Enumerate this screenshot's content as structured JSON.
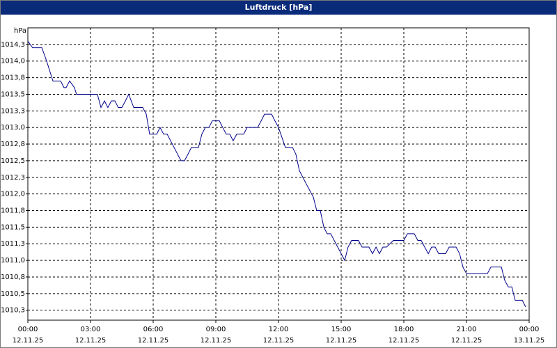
{
  "chart_data": {
    "type": "line",
    "title": "Luftdruck [hPa]",
    "y_label": "hPa",
    "x": [
      0,
      0.23,
      0.67,
      0.9,
      1.2,
      1.57,
      1.73,
      1.83,
      2,
      2.23,
      2.33,
      3.33,
      3.5,
      3.67,
      3.83,
      4,
      4.17,
      4.33,
      4.5,
      4.67,
      4.83,
      5.07,
      5.5,
      5.67,
      5.83,
      6.17,
      6.33,
      6.5,
      6.67,
      7,
      7.33,
      7.5,
      7.67,
      7.83,
      8.17,
      8.33,
      8.5,
      8.67,
      8.83,
      9.17,
      9.33,
      9.5,
      9.67,
      9.83,
      10,
      10.33,
      10.5,
      11,
      11.17,
      11.33,
      11.67,
      11.83,
      12,
      12.33,
      12.67,
      12.83,
      13,
      13.33,
      13.67,
      13.83,
      14,
      14.17,
      14.33,
      14.5,
      15.17,
      15.33,
      15.5,
      15.83,
      16,
      16.33,
      16.5,
      16.67,
      16.83,
      17,
      17.17,
      17.5,
      18,
      18.17,
      18.5,
      18.67,
      18.83,
      19.17,
      19.33,
      19.5,
      19.67,
      20,
      20.17,
      20.5,
      20.67,
      20.83,
      21,
      22,
      22.17,
      22.67,
      22.83,
      23,
      23.17,
      23.33,
      23.67,
      23.83
    ],
    "series": [
      {
        "name": "Luftdruck",
        "color": "#00008b",
        "values": [
          1014.3,
          1014.2,
          1014.2,
          1014.0,
          1013.7,
          1013.7,
          1013.6,
          1013.6,
          1013.7,
          1013.6,
          1013.5,
          1013.5,
          1013.3,
          1013.4,
          1013.3,
          1013.4,
          1013.4,
          1013.3,
          1013.3,
          1013.4,
          1013.5,
          1013.3,
          1013.3,
          1013.2,
          1012.9,
          1012.9,
          1013.0,
          1012.9,
          1012.9,
          1012.7,
          1012.5,
          1012.5,
          1012.6,
          1012.7,
          1012.7,
          1012.9,
          1013.0,
          1013.0,
          1013.1,
          1013.1,
          1013.0,
          1012.9,
          1012.9,
          1012.8,
          1012.9,
          1012.9,
          1013.0,
          1013.0,
          1013.1,
          1013.2,
          1013.2,
          1013.1,
          1013.0,
          1012.7,
          1012.7,
          1012.6,
          1012.35,
          1012.15,
          1011.95,
          1011.75,
          1011.75,
          1011.5,
          1011.4,
          1011.4,
          1011.0,
          1011.2,
          1011.3,
          1011.3,
          1011.2,
          1011.2,
          1011.1,
          1011.2,
          1011.1,
          1011.2,
          1011.2,
          1011.3,
          1011.3,
          1011.4,
          1011.4,
          1011.3,
          1011.3,
          1011.1,
          1011.2,
          1011.2,
          1011.1,
          1011.1,
          1011.2,
          1011.2,
          1011.1,
          1010.9,
          1010.8,
          1010.8,
          1010.9,
          1010.9,
          1010.7,
          1010.6,
          1010.6,
          1010.4,
          1010.4,
          1010.3
        ]
      }
    ],
    "xlim": [
      0,
      24
    ],
    "xticks": [
      {
        "value": 0,
        "label": "00:00",
        "date": "12.11.25"
      },
      {
        "value": 3,
        "label": "03:00",
        "date": "12.11.25"
      },
      {
        "value": 6,
        "label": "06:00",
        "date": "12.11.25"
      },
      {
        "value": 9,
        "label": "09:00",
        "date": "12.11.25"
      },
      {
        "value": 12,
        "label": "12:00",
        "date": "12.11.25"
      },
      {
        "value": 15,
        "label": "15:00",
        "date": "12.11.25"
      },
      {
        "value": 18,
        "label": "18:00",
        "date": "12.11.25"
      },
      {
        "value": 21,
        "label": "21:00",
        "date": "12.11.25"
      },
      {
        "value": 24,
        "label": "00:00",
        "date": "13.11.25"
      }
    ],
    "ylim": [
      1010.1,
      1014.5
    ],
    "yticks": [
      {
        "value": 1010.25,
        "label": "1010,3"
      },
      {
        "value": 1010.5,
        "label": "1010,5"
      },
      {
        "value": 1010.75,
        "label": "1010,8"
      },
      {
        "value": 1011,
        "label": "1011,0"
      },
      {
        "value": 1011.25,
        "label": "1011,3"
      },
      {
        "value": 1011.5,
        "label": "1011,5"
      },
      {
        "value": 1011.75,
        "label": "1011,8"
      },
      {
        "value": 1012,
        "label": "1012,0"
      },
      {
        "value": 1012.25,
        "label": "1012,3"
      },
      {
        "value": 1012.5,
        "label": "1012,5"
      },
      {
        "value": 1012.75,
        "label": "1012,8"
      },
      {
        "value": 1013,
        "label": "1013,0"
      },
      {
        "value": 1013.25,
        "label": "1013,3"
      },
      {
        "value": 1013.5,
        "label": "1013,5"
      },
      {
        "value": 1013.75,
        "label": "1013,8"
      },
      {
        "value": 1014,
        "label": "1014,0"
      },
      {
        "value": 1014.25,
        "label": "1014,3"
      }
    ],
    "grid": true
  }
}
